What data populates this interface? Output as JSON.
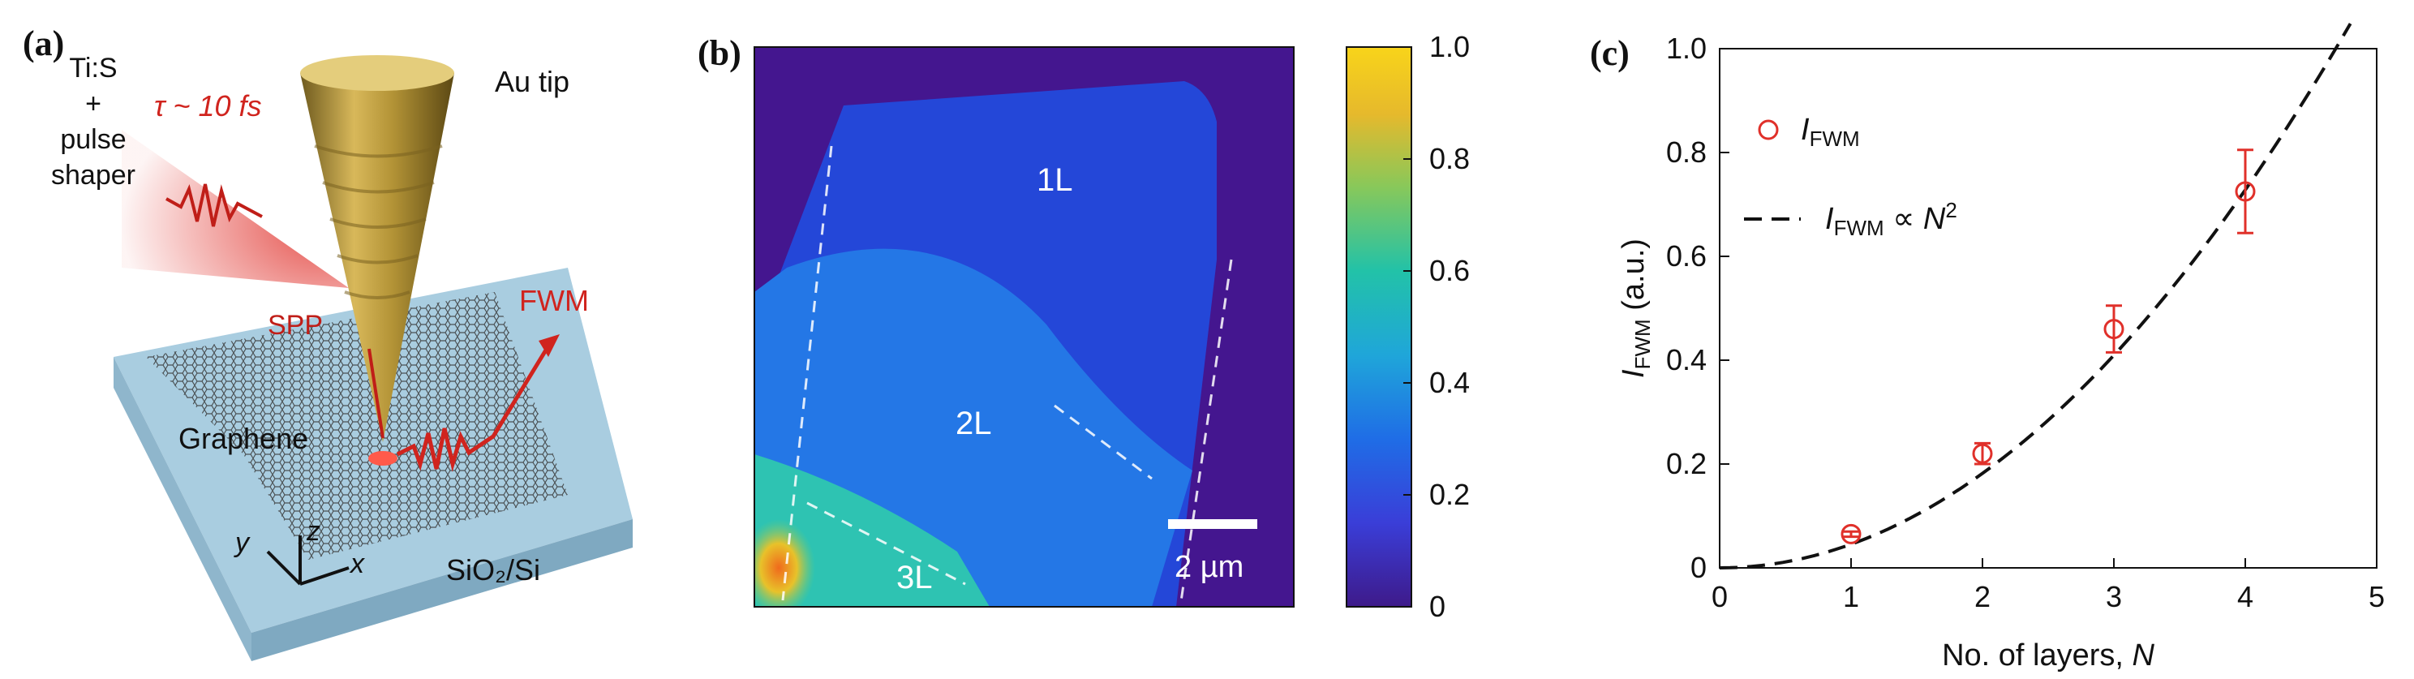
{
  "panels": {
    "a": {
      "letter": "(a)",
      "source_label": "Ti:S\n+\npulse\nshaper",
      "pulse_label": "τ ~ 10 fs",
      "tip_label": "Au tip",
      "spp_label": "SPP",
      "fwm_label": "FWM",
      "graphene_label": "Graphene",
      "substrate_label": "SiO₂/Si",
      "axes": {
        "x": "x",
        "y": "y",
        "z": "z"
      },
      "colors": {
        "laser": "#e0302a",
        "substrate": "#9ec3d9",
        "tip": "#a88a3a"
      }
    },
    "b": {
      "letter": "(b)",
      "region_labels": [
        "1L",
        "2L",
        "3L"
      ],
      "scale_bar_label": "2 µm",
      "colorbar_ticks": [
        "1.0",
        "0.8",
        "0.6",
        "0.4",
        "0.2",
        "0"
      ],
      "colormap": "parula"
    },
    "c": {
      "letter": "(c)"
    }
  },
  "chart_data": {
    "type": "scatter",
    "xlabel": "No. of layers, N",
    "ylabel": "I_FWM (a.u.)",
    "xlim": [
      0,
      5
    ],
    "ylim": [
      0,
      1.0
    ],
    "xticks": [
      "0",
      "1",
      "2",
      "3",
      "4",
      "5"
    ],
    "yticks": [
      "0",
      "0.2",
      "0.4",
      "0.6",
      "0.8",
      "1.0"
    ],
    "legend_placement": "top-left",
    "series": [
      {
        "name": "I_FWM",
        "kind": "markers",
        "color": "#e0302a",
        "x": [
          1,
          2,
          3,
          4
        ],
        "y": [
          0.065,
          0.22,
          0.46,
          0.725
        ],
        "yerr": [
          0.005,
          0.02,
          0.045,
          0.08
        ]
      },
      {
        "name": "I_FWM ∝ N²",
        "kind": "dashed-line",
        "color": "#111111",
        "coefficient": 0.0455,
        "x_range": [
          0,
          4.8
        ]
      }
    ]
  }
}
